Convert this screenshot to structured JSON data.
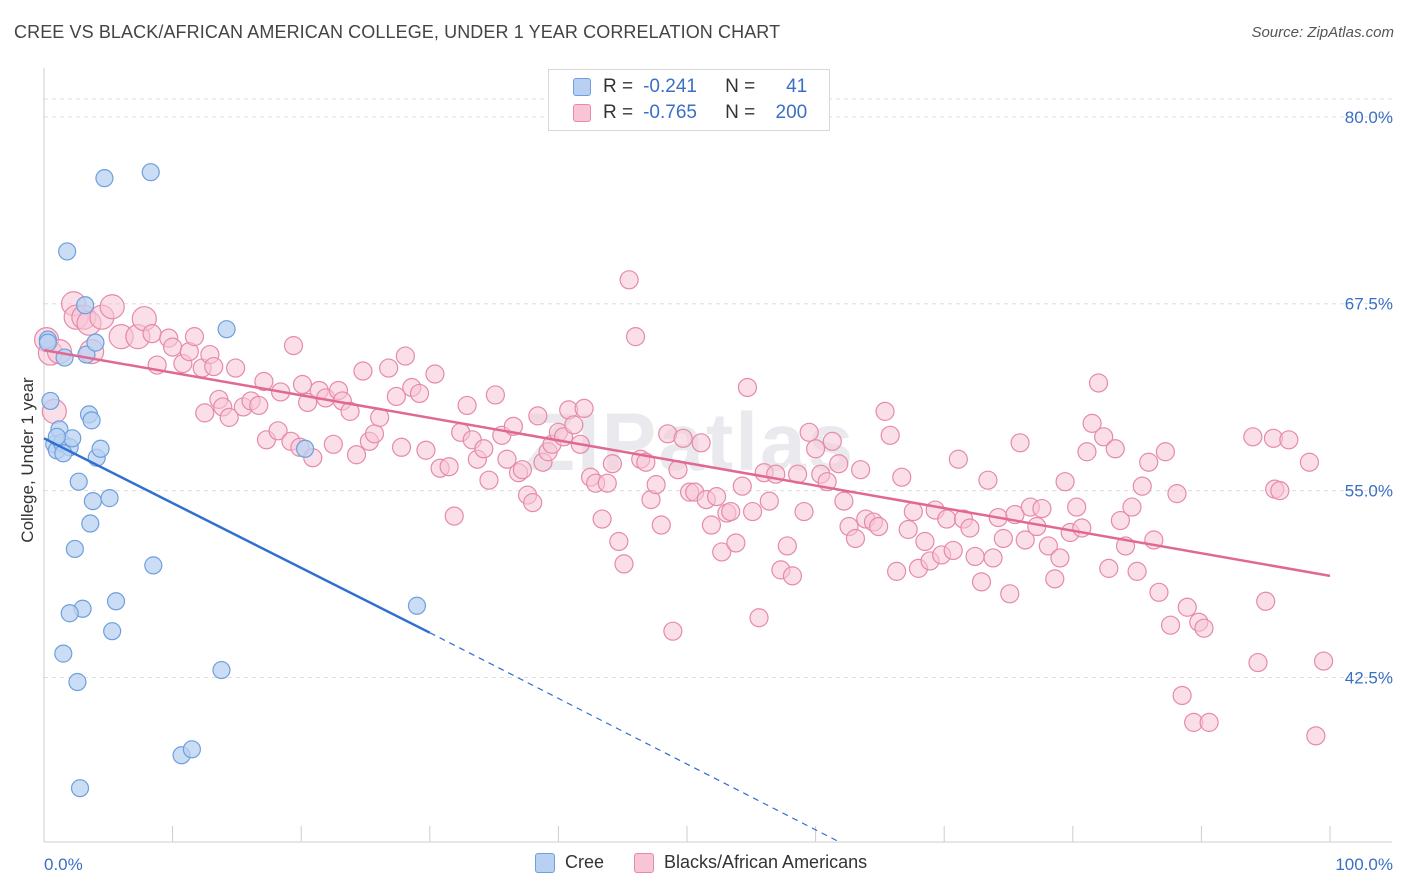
{
  "title": "CREE VS BLACK/AFRICAN AMERICAN COLLEGE, UNDER 1 YEAR CORRELATION CHART",
  "source": "Source: ZipAtlas.com",
  "watermark": "ZIPatlas",
  "colors": {
    "cree_fill": "#b8d1f2",
    "cree_stroke": "#6f9fdc",
    "cree_line": "#2f6fd0",
    "black_fill": "#f7c5d5",
    "black_stroke": "#e68aa8",
    "black_line": "#e06892",
    "value_text": "#3a6fc4",
    "grid": "#dddddd"
  },
  "legend_top": {
    "rows": [
      {
        "r_label": "R =",
        "r_value": "-0.241",
        "n_label": "N =",
        "n_value": "41"
      },
      {
        "r_label": "R =",
        "r_value": "-0.765",
        "n_label": "N =",
        "n_value": "200"
      }
    ]
  },
  "legend_bottom": [
    "Cree",
    "Blacks/African Americans"
  ],
  "chart_data": {
    "type": "scatter",
    "title": "CREE VS BLACK/AFRICAN AMERICAN COLLEGE, UNDER 1 YEAR CORRELATION CHART",
    "xlabel": "",
    "ylabel": "College, Under 1 year",
    "xlim": [
      0,
      100
    ],
    "ylim": [
      31.5,
      83
    ],
    "x_tick_labels": [
      "0.0%",
      "100.0%"
    ],
    "y_ticks": [
      42.5,
      55.0,
      67.5,
      80.0
    ],
    "y_tick_labels": [
      "42.5%",
      "55.0%",
      "67.5%",
      "80.0%"
    ],
    "grid": true,
    "legend_position": "top-center",
    "series": [
      {
        "name": "Cree",
        "r": -0.241,
        "n": 41,
        "trend": {
          "x0": 0,
          "y0": 58.5,
          "x1": 30,
          "y1": 45.5,
          "dash_to_x": 68,
          "dash_to_y": 28.8
        },
        "points": [
          [
            0.3,
            65.1
          ],
          [
            0.3,
            64.9
          ],
          [
            0.5,
            61.0
          ],
          [
            0.8,
            58.1
          ],
          [
            1.0,
            57.7
          ],
          [
            1.2,
            59.1
          ],
          [
            1.4,
            58.2
          ],
          [
            1.6,
            63.9
          ],
          [
            1.8,
            71.0
          ],
          [
            2.0,
            57.9
          ],
          [
            2.2,
            58.5
          ],
          [
            2.4,
            51.1
          ],
          [
            2.6,
            42.2
          ],
          [
            2.7,
            55.6
          ],
          [
            2.8,
            35.1
          ],
          [
            3.0,
            47.1
          ],
          [
            3.2,
            67.4
          ],
          [
            3.3,
            64.1
          ],
          [
            3.5,
            60.1
          ],
          [
            3.6,
            52.8
          ],
          [
            3.7,
            59.7
          ],
          [
            3.8,
            54.3
          ],
          [
            4.0,
            64.9
          ],
          [
            4.1,
            57.2
          ],
          [
            4.4,
            57.8
          ],
          [
            4.7,
            75.9
          ],
          [
            5.1,
            54.5
          ],
          [
            5.3,
            45.6
          ],
          [
            5.6,
            47.6
          ],
          [
            8.3,
            76.3
          ],
          [
            8.5,
            50.0
          ],
          [
            10.7,
            37.3
          ],
          [
            11.5,
            37.7
          ],
          [
            13.8,
            43.0
          ],
          [
            14.2,
            65.8
          ],
          [
            20.3,
            57.8
          ],
          [
            29.0,
            47.3
          ],
          [
            1.5,
            44.1
          ],
          [
            2.0,
            46.8
          ],
          [
            1.0,
            58.6
          ],
          [
            1.5,
            57.5
          ]
        ]
      },
      {
        "name": "Blacks/African Americans",
        "r": -0.765,
        "n": 200,
        "trend": {
          "x0": 0,
          "y0": 64.4,
          "x1": 100,
          "y1": 49.3
        },
        "points": [
          [
            0.2,
            65.1
          ],
          [
            0.5,
            64.2
          ],
          [
            0.8,
            60.3
          ],
          [
            1.2,
            64.3
          ],
          [
            2.3,
            67.5
          ],
          [
            2.5,
            66.6
          ],
          [
            3.1,
            66.6
          ],
          [
            3.5,
            66.2
          ],
          [
            3.7,
            64.3
          ],
          [
            4.5,
            66.6
          ],
          [
            5.3,
            67.3
          ],
          [
            6.0,
            65.3
          ],
          [
            7.3,
            65.3
          ],
          [
            7.8,
            66.5
          ],
          [
            8.4,
            65.5
          ],
          [
            8.8,
            63.4
          ],
          [
            9.7,
            65.2
          ],
          [
            10.0,
            64.6
          ],
          [
            10.8,
            63.5
          ],
          [
            11.3,
            64.3
          ],
          [
            11.7,
            65.3
          ],
          [
            12.3,
            63.2
          ],
          [
            12.5,
            60.2
          ],
          [
            12.9,
            64.1
          ],
          [
            13.2,
            63.3
          ],
          [
            13.6,
            61.1
          ],
          [
            13.9,
            60.6
          ],
          [
            14.4,
            59.9
          ],
          [
            14.9,
            63.2
          ],
          [
            15.5,
            60.6
          ],
          [
            16.1,
            61.0
          ],
          [
            16.7,
            60.7
          ],
          [
            17.1,
            62.3
          ],
          [
            17.3,
            58.4
          ],
          [
            18.2,
            59.0
          ],
          [
            18.4,
            61.6
          ],
          [
            19.2,
            58.3
          ],
          [
            19.4,
            64.7
          ],
          [
            19.9,
            57.9
          ],
          [
            20.1,
            62.1
          ],
          [
            20.5,
            60.9
          ],
          [
            20.9,
            57.2
          ],
          [
            21.4,
            61.7
          ],
          [
            21.9,
            61.2
          ],
          [
            22.5,
            58.1
          ],
          [
            22.9,
            61.7
          ],
          [
            23.2,
            61.0
          ],
          [
            23.8,
            60.3
          ],
          [
            24.3,
            57.4
          ],
          [
            24.8,
            63.0
          ],
          [
            25.3,
            58.3
          ],
          [
            25.7,
            58.8
          ],
          [
            26.1,
            59.9
          ],
          [
            26.8,
            63.2
          ],
          [
            27.4,
            61.3
          ],
          [
            27.8,
            57.9
          ],
          [
            28.1,
            64.0
          ],
          [
            28.6,
            61.9
          ],
          [
            29.2,
            61.5
          ],
          [
            29.7,
            57.7
          ],
          [
            30.4,
            62.8
          ],
          [
            30.8,
            56.5
          ],
          [
            31.5,
            56.6
          ],
          [
            31.9,
            53.3
          ],
          [
            32.4,
            58.9
          ],
          [
            32.9,
            60.7
          ],
          [
            33.3,
            58.4
          ],
          [
            33.7,
            57.1
          ],
          [
            34.2,
            57.8
          ],
          [
            34.6,
            55.7
          ],
          [
            35.1,
            61.4
          ],
          [
            35.6,
            58.7
          ],
          [
            36.0,
            57.1
          ],
          [
            36.5,
            59.3
          ],
          [
            36.9,
            56.2
          ],
          [
            37.2,
            56.4
          ],
          [
            37.6,
            54.7
          ],
          [
            38.0,
            54.2
          ],
          [
            38.4,
            60.0
          ],
          [
            38.8,
            56.9
          ],
          [
            39.2,
            57.6
          ],
          [
            39.5,
            58.1
          ],
          [
            40.0,
            58.9
          ],
          [
            40.4,
            58.6
          ],
          [
            40.8,
            60.4
          ],
          [
            41.2,
            59.4
          ],
          [
            41.7,
            58.1
          ],
          [
            42.0,
            60.5
          ],
          [
            42.5,
            55.9
          ],
          [
            42.9,
            55.5
          ],
          [
            43.4,
            53.1
          ],
          [
            43.8,
            55.5
          ],
          [
            44.2,
            56.8
          ],
          [
            44.7,
            51.6
          ],
          [
            45.1,
            50.1
          ],
          [
            45.5,
            69.1
          ],
          [
            46.0,
            65.3
          ],
          [
            46.4,
            57.1
          ],
          [
            46.8,
            56.9
          ],
          [
            47.2,
            54.4
          ],
          [
            47.6,
            55.4
          ],
          [
            48.0,
            52.7
          ],
          [
            48.5,
            58.8
          ],
          [
            48.9,
            45.6
          ],
          [
            49.3,
            56.4
          ],
          [
            49.7,
            58.5
          ],
          [
            50.2,
            54.9
          ],
          [
            50.6,
            54.9
          ],
          [
            51.1,
            58.2
          ],
          [
            51.5,
            54.4
          ],
          [
            51.9,
            52.7
          ],
          [
            52.3,
            54.6
          ],
          [
            52.7,
            50.9
          ],
          [
            53.1,
            53.5
          ],
          [
            53.4,
            53.6
          ],
          [
            53.8,
            51.5
          ],
          [
            54.3,
            55.3
          ],
          [
            54.7,
            61.9
          ],
          [
            55.1,
            53.6
          ],
          [
            55.6,
            46.5
          ],
          [
            56.0,
            56.2
          ],
          [
            56.4,
            54.3
          ],
          [
            56.9,
            56.1
          ],
          [
            57.3,
            49.7
          ],
          [
            57.8,
            51.3
          ],
          [
            58.2,
            49.3
          ],
          [
            58.6,
            56.1
          ],
          [
            59.1,
            53.6
          ],
          [
            59.5,
            58.9
          ],
          [
            60.0,
            57.8
          ],
          [
            60.4,
            56.1
          ],
          [
            60.9,
            55.6
          ],
          [
            61.3,
            58.3
          ],
          [
            61.8,
            56.8
          ],
          [
            62.2,
            54.3
          ],
          [
            62.6,
            52.6
          ],
          [
            63.1,
            51.8
          ],
          [
            63.5,
            56.4
          ],
          [
            63.9,
            53.1
          ],
          [
            64.5,
            52.9
          ],
          [
            64.9,
            52.6
          ],
          [
            65.4,
            60.3
          ],
          [
            65.8,
            58.7
          ],
          [
            66.3,
            49.6
          ],
          [
            66.7,
            55.9
          ],
          [
            67.2,
            52.4
          ],
          [
            67.6,
            53.6
          ],
          [
            68.0,
            49.8
          ],
          [
            68.5,
            51.6
          ],
          [
            68.9,
            50.3
          ],
          [
            69.3,
            53.7
          ],
          [
            69.8,
            50.7
          ],
          [
            70.2,
            53.1
          ],
          [
            70.7,
            51.0
          ],
          [
            71.1,
            57.1
          ],
          [
            71.5,
            53.1
          ],
          [
            72.0,
            52.5
          ],
          [
            72.4,
            50.6
          ],
          [
            72.9,
            48.9
          ],
          [
            73.4,
            55.7
          ],
          [
            73.8,
            50.5
          ],
          [
            74.2,
            53.2
          ],
          [
            74.6,
            51.8
          ],
          [
            75.1,
            48.1
          ],
          [
            75.5,
            53.4
          ],
          [
            75.9,
            58.2
          ],
          [
            76.3,
            51.7
          ],
          [
            76.7,
            53.9
          ],
          [
            77.2,
            52.6
          ],
          [
            77.6,
            53.8
          ],
          [
            78.1,
            51.3
          ],
          [
            78.6,
            49.1
          ],
          [
            79.0,
            50.5
          ],
          [
            79.4,
            55.6
          ],
          [
            79.8,
            52.2
          ],
          [
            80.3,
            53.9
          ],
          [
            80.7,
            52.5
          ],
          [
            81.1,
            57.6
          ],
          [
            81.5,
            59.5
          ],
          [
            82.0,
            62.2
          ],
          [
            82.4,
            58.6
          ],
          [
            82.8,
            49.8
          ],
          [
            83.3,
            57.8
          ],
          [
            83.7,
            53.0
          ],
          [
            84.1,
            51.3
          ],
          [
            84.6,
            53.9
          ],
          [
            85.0,
            49.6
          ],
          [
            85.4,
            55.3
          ],
          [
            85.9,
            56.9
          ],
          [
            86.3,
            51.7
          ],
          [
            86.7,
            48.2
          ],
          [
            87.2,
            57.6
          ],
          [
            87.6,
            46.0
          ],
          [
            88.1,
            54.8
          ],
          [
            88.5,
            41.3
          ],
          [
            88.9,
            47.2
          ],
          [
            89.4,
            39.5
          ],
          [
            89.8,
            46.2
          ],
          [
            90.2,
            45.8
          ],
          [
            90.6,
            39.5
          ],
          [
            94.0,
            58.6
          ],
          [
            95.6,
            58.5
          ],
          [
            95.7,
            55.1
          ],
          [
            96.1,
            55.0
          ],
          [
            96.8,
            58.4
          ],
          [
            98.4,
            56.9
          ],
          [
            98.9,
            38.6
          ],
          [
            99.5,
            43.6
          ],
          [
            94.4,
            43.5
          ],
          [
            95.0,
            47.6
          ]
        ]
      }
    ]
  }
}
